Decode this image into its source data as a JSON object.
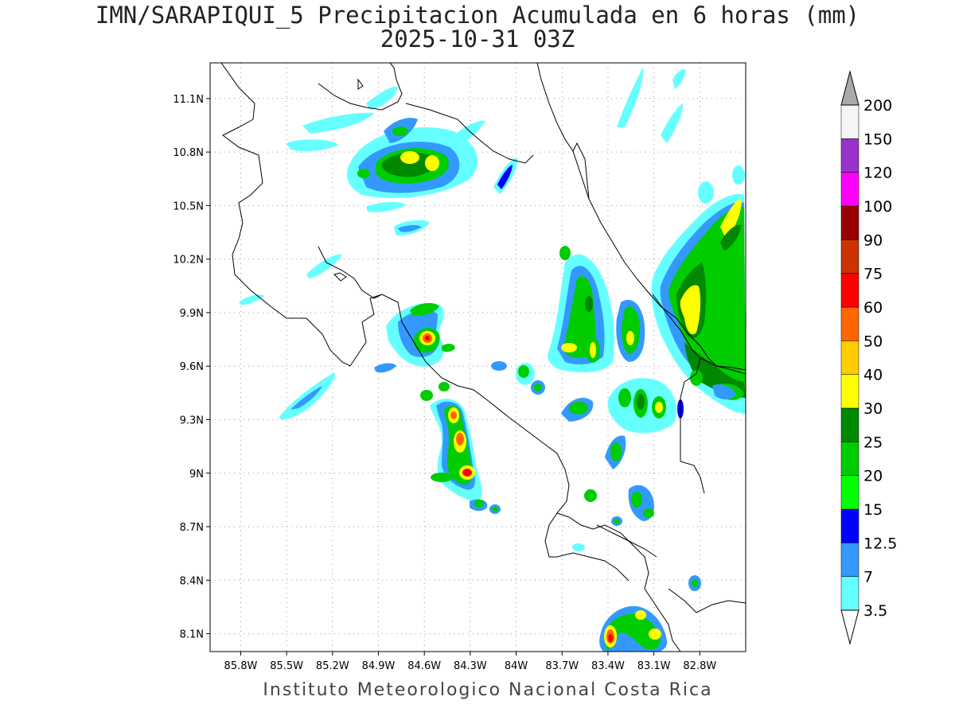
{
  "title_line1": "IMN/SARAPIQUI_5 Precipitacion Acumulada en 6 horas (mm)",
  "title_line2": "2025-10-31 03Z",
  "credit": "Instituto Meteorologico Nacional Costa Rica",
  "map": {
    "lon_range": [
      -86.0,
      -82.5
    ],
    "lat_range": [
      8.0,
      11.3
    ],
    "lon_ticks": [
      "85.8W",
      "85.5W",
      "85.2W",
      "84.9W",
      "84.6W",
      "84.3W",
      "84W",
      "83.7W",
      "83.4W",
      "83.1W",
      "82.8W"
    ],
    "lon_tick_values": [
      -85.8,
      -85.5,
      -85.2,
      -84.9,
      -84.6,
      -84.3,
      -84.0,
      -83.7,
      -83.4,
      -83.1,
      -82.8
    ],
    "lat_ticks": [
      "11.1N",
      "10.8N",
      "10.5N",
      "10.2N",
      "9.9N",
      "9.6N",
      "9.3N",
      "9N",
      "8.7N",
      "8.4N",
      "8.1N"
    ],
    "lat_tick_values": [
      11.1,
      10.8,
      10.5,
      10.2,
      9.9,
      9.6,
      9.3,
      9.0,
      8.7,
      8.4,
      8.1
    ],
    "grid": "dotted"
  },
  "colorbar": {
    "labels": [
      "3.5",
      "7",
      "12.5",
      "15",
      "20",
      "25",
      "30",
      "40",
      "50",
      "60",
      "75",
      "90",
      "100",
      "120",
      "150",
      "200"
    ],
    "colors": [
      "#66ffff",
      "#3399ff",
      "#0000ff",
      "#00ff00",
      "#00cc00",
      "#008800",
      "#ffff00",
      "#ffcc00",
      "#ff6600",
      "#ff0000",
      "#cc3300",
      "#990000",
      "#ff00ff",
      "#9933cc",
      "#f5f5f5",
      "#aaaaaa"
    ]
  }
}
